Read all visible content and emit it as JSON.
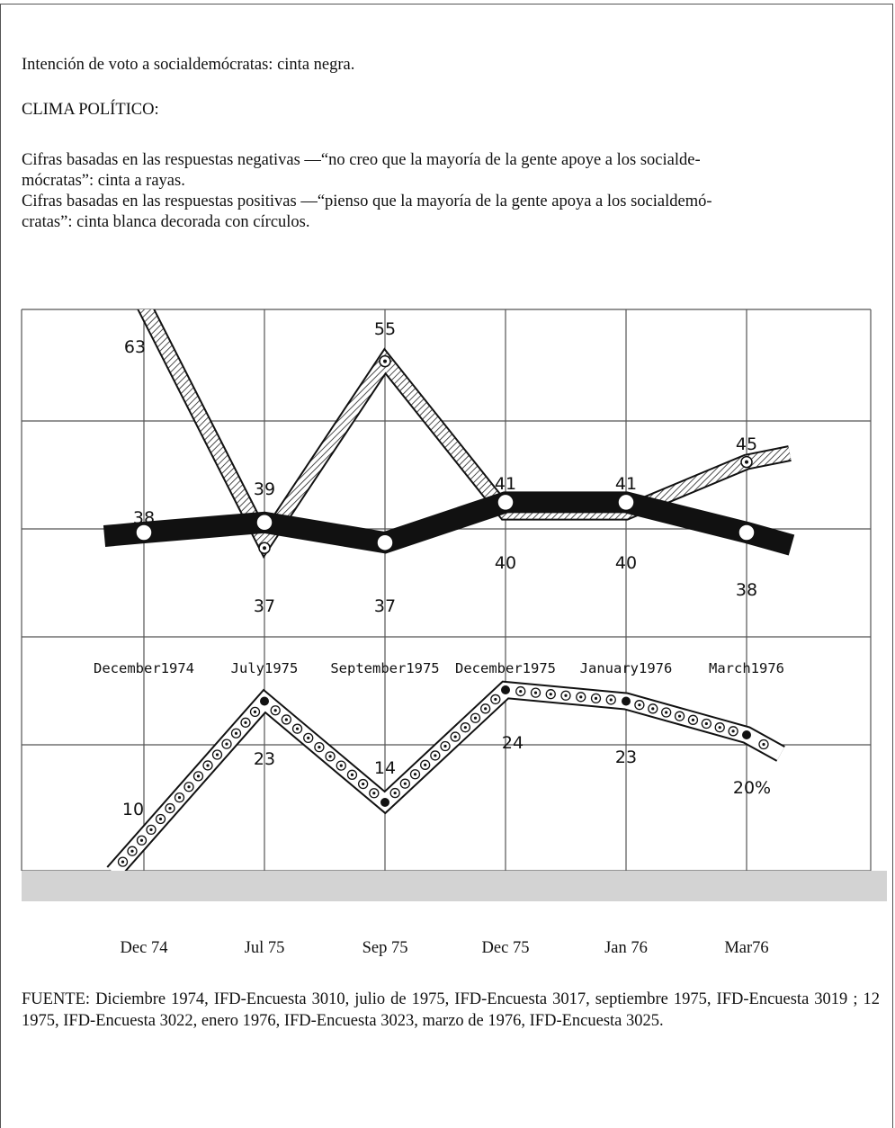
{
  "intro": {
    "vote_intention": "Intención de voto a socialdemócratas: cinta negra.",
    "climate_heading": "CLIMA POLÍTICO:",
    "negative_1": "Cifras basadas en las respuestas negativas —“no creo que la mayoría de la gente apoye a los socialde-",
    "negative_2": "mócratas”: cinta a rayas.",
    "positive_1": "Cifras basadas en las respuestas positivas —“pienso que la mayoría de la gente apoya a los socialdemó-",
    "positive_2": "cratas”: cinta blanca decorada con círculos."
  },
  "chart_data": {
    "type": "line",
    "categories": [
      "December1974",
      "July1975",
      "September1975",
      "December1975",
      "January1976",
      "March1976"
    ],
    "series": [
      {
        "name": "Intención de voto a socialdemócratas",
        "style": "black",
        "values": [
          38,
          39,
          37,
          41,
          41,
          38
        ],
        "labels": [
          "38",
          "39",
          "37",
          "41",
          "41",
          "38"
        ]
      },
      {
        "name": "Respuestas negativas",
        "style": "striped",
        "values": [
          63,
          37,
          55,
          40,
          40,
          45
        ],
        "labels": [
          "63",
          "37",
          "55",
          "40",
          "40",
          "45"
        ]
      },
      {
        "name": "Respuestas positivas",
        "style": "circles",
        "values": [
          10,
          23,
          14,
          24,
          23,
          20
        ],
        "labels": [
          "10",
          "23",
          "14",
          "24",
          "23",
          "20%"
        ]
      }
    ],
    "colors": {
      "band": "#111111",
      "paper": "#ffffff",
      "grid": "#555555"
    }
  },
  "x_labels": [
    "Dec 74",
    "Jul 75",
    "Sep 75",
    "Dec 75",
    "Jan 76",
    "Mar76"
  ],
  "source": "FUENTE: Diciembre 1974, IFD-Encuesta 3010, julio de 1975, IFD-Encuesta 3017, septiembre 1975, IFD-Encuesta 3019 ; 12 1975, IFD-Encuesta 3022, enero 1976, IFD-Encuesta 3023, marzo de 1976, IFD-Encuesta 3025."
}
